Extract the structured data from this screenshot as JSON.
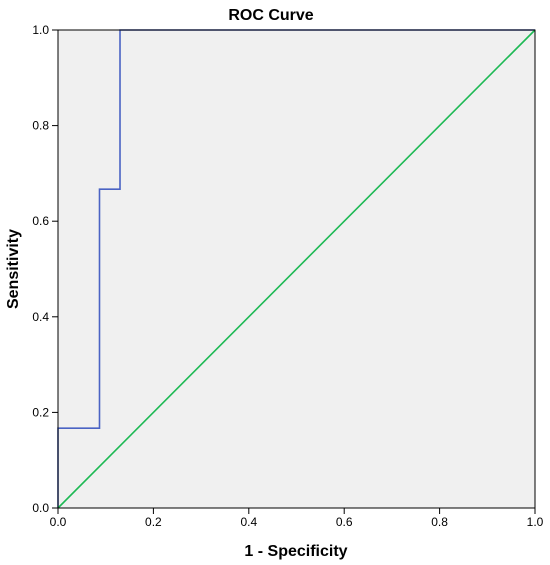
{
  "chart_data": {
    "type": "line",
    "title": "ROC Curve",
    "xlabel": "1 - Specificity",
    "ylabel": "Sensitivity",
    "xlim": [
      0,
      1
    ],
    "ylim": [
      0,
      1
    ],
    "x_ticks": [
      "0.0",
      "0.2",
      "0.4",
      "0.6",
      "0.8",
      "1.0"
    ],
    "y_ticks": [
      "0.0",
      "0.2",
      "0.4",
      "0.6",
      "0.8",
      "1.0"
    ],
    "grid": false,
    "legend": "none",
    "series": [
      {
        "color": "#4a63c4",
        "x": [
          0.0,
          0.0,
          0.087,
          0.087,
          0.13,
          0.13,
          1.0
        ],
        "y": [
          0.0,
          0.167,
          0.167,
          0.667,
          0.667,
          1.0,
          1.0
        ]
      },
      {
        "color": "#1db954",
        "x": [
          0.0,
          1.0
        ],
        "y": [
          0.0,
          1.0
        ]
      }
    ],
    "colors": {
      "plot_background": "#f0f0f0",
      "frame": "#000000"
    }
  }
}
